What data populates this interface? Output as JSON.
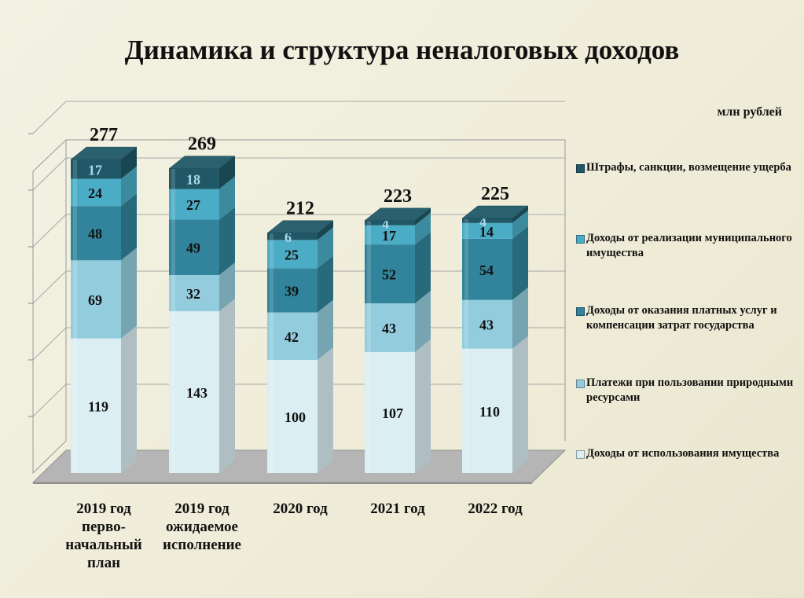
{
  "title": "Динамика  и  структура неналоговых доходов",
  "unit": "млн рублей",
  "chart_data": {
    "type": "bar",
    "stacked": true,
    "three_d": true,
    "categories": [
      [
        "2019 год",
        "перво-",
        "начальный",
        "план"
      ],
      [
        "2019 год",
        "ожидаемое",
        "исполнение"
      ],
      [
        "2020 год"
      ],
      [
        "2021 год"
      ],
      [
        "2022 год"
      ]
    ],
    "totals": [
      "277",
      "269",
      "212",
      "223",
      "225"
    ],
    "series": [
      {
        "name": "Доходы от использования имущества",
        "values": [
          119,
          143,
          100,
          107,
          110
        ],
        "color": "#dbeef3",
        "label_color": "#111111"
      },
      {
        "name": "Платежи при пользовании природными ресурсами",
        "values": [
          69,
          32,
          42,
          43,
          43
        ],
        "color": "#93cddd",
        "label_color": "#111111"
      },
      {
        "name": "Доходы от оказания платных услуг и компенсации затрат государства",
        "values": [
          48,
          49,
          39,
          52,
          54
        ],
        "color": "#31849b",
        "label_color": "#111111"
      },
      {
        "name": "Доходы от реализации муниципального имущества",
        "values": [
          24,
          27,
          25,
          17,
          14
        ],
        "color": "#4bacc6",
        "label_color": "#111111"
      },
      {
        "name": "Штрафы, санкции, возмещение ущерба",
        "values": [
          17,
          18,
          6,
          4,
          4
        ],
        "color": "#205867",
        "label_color": "#a9d8e6"
      }
    ],
    "ylim": [
      0,
      300
    ],
    "grid": true,
    "legend": "right"
  }
}
